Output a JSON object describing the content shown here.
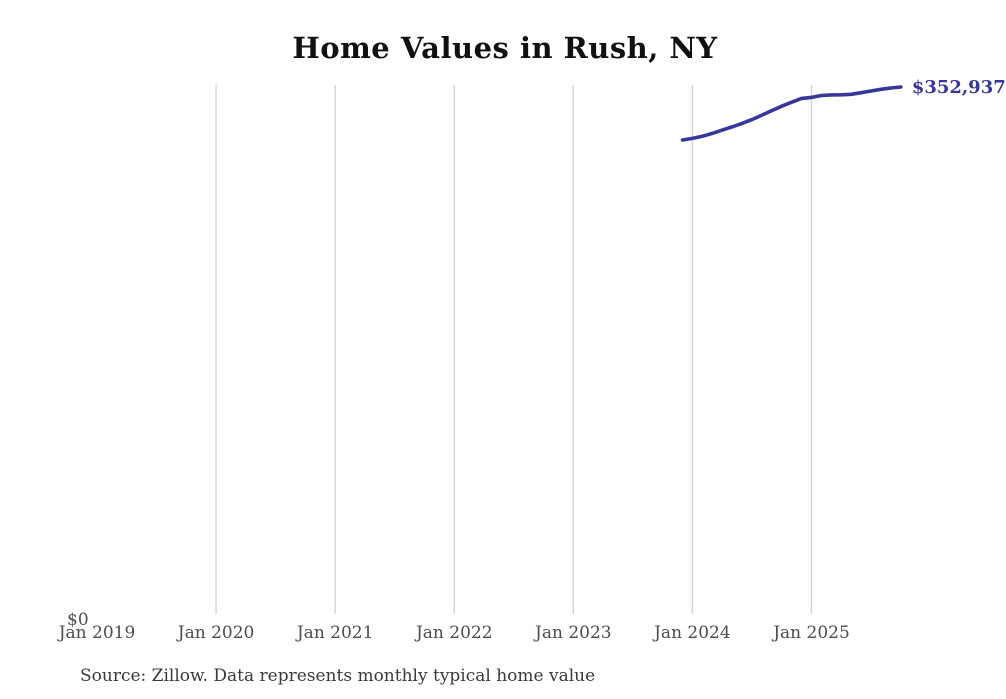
{
  "chart": {
    "title": "Home Values in Rush, NY",
    "source": "Source: Zillow. Data represents monthly typical home value",
    "end_label": "$352,937",
    "y_axis": {
      "zero_label": "$0"
    },
    "x_axis": {
      "ticks": [
        "Jan 2019",
        "Jan 2020",
        "Jan 2021",
        "Jan 2022",
        "Jan 2023",
        "Jan 2024",
        "Jan 2025"
      ]
    },
    "colors": {
      "line": "#37379b",
      "end_label_text": "#37379b",
      "gridline": "#d4d4d4",
      "axis_text": "#4d4d4d",
      "title_text": "#111111",
      "source_text": "#3a3a3a"
    }
  },
  "chart_data": {
    "type": "line",
    "title": "Home Values in Rush, NY",
    "series_name": "Monthly typical home value",
    "xlabel": "",
    "ylabel": "",
    "ylim": [
      0,
      360000
    ],
    "grid": "vertical-gridlines-only",
    "legend": "none",
    "x_tick_labels": [
      "Jan 2019",
      "Jan 2020",
      "Jan 2021",
      "Jan 2022",
      "Jan 2023",
      "Jan 2024",
      "Jan 2025"
    ],
    "y_tick_labels": [
      "$0"
    ],
    "end_annotation": "$352,937",
    "x": [
      "2023-12",
      "2024-01",
      "2024-02",
      "2024-03",
      "2024-04",
      "2024-05",
      "2024-06",
      "2024-07",
      "2024-08",
      "2024-09",
      "2024-10",
      "2024-11",
      "2024-12",
      "2025-01",
      "2025-02",
      "2025-03",
      "2025-04",
      "2025-05",
      "2025-06",
      "2025-07",
      "2025-08",
      "2025-09",
      "2025-10"
    ],
    "values": [
      318000,
      319000,
      320400,
      322300,
      324500,
      326600,
      328900,
      331400,
      334400,
      337400,
      340300,
      342900,
      345400,
      346100,
      347300,
      347700,
      347800,
      348100,
      349200,
      350300,
      351400,
      352300,
      352937
    ]
  }
}
